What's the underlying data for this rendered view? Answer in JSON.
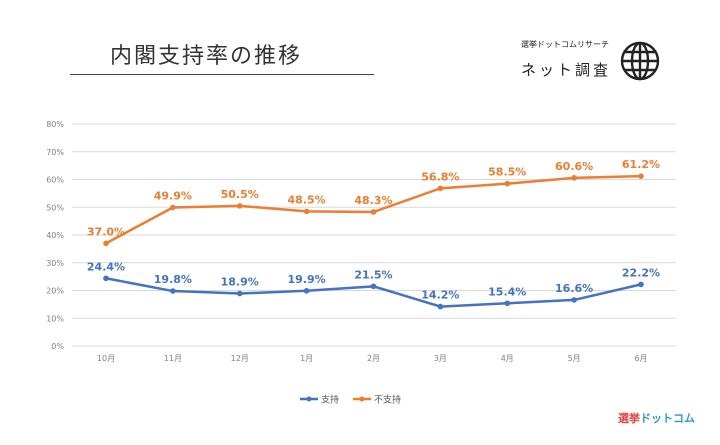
{
  "header": {
    "title": "内閣支持率の推移",
    "source_small": "選挙ドットコムリサーチ",
    "source_big": "ネット調査",
    "brand_a": "選挙",
    "brand_b": "ドットコム"
  },
  "colors": {
    "support": "#4472c4",
    "nonsupport": "#ed7d31",
    "grid": "#d9d9d9",
    "tick": "#808080"
  },
  "chart_data": {
    "type": "line",
    "categories": [
      "10月",
      "11月",
      "12月",
      "1月",
      "2月",
      "3月",
      "4月",
      "5月",
      "6月"
    ],
    "series": [
      {
        "name": "支持",
        "values": [
          24.4,
          19.8,
          18.9,
          19.9,
          21.5,
          14.2,
          15.4,
          16.6,
          22.2
        ]
      },
      {
        "name": "不支持",
        "values": [
          37.0,
          49.9,
          50.5,
          48.5,
          48.3,
          56.8,
          58.5,
          60.6,
          61.2
        ]
      }
    ],
    "ylim": [
      0,
      80
    ],
    "ytick_step": 10,
    "ytick_format": "%",
    "data_label_format": "%",
    "grid": true,
    "legend_position": "bottom"
  }
}
